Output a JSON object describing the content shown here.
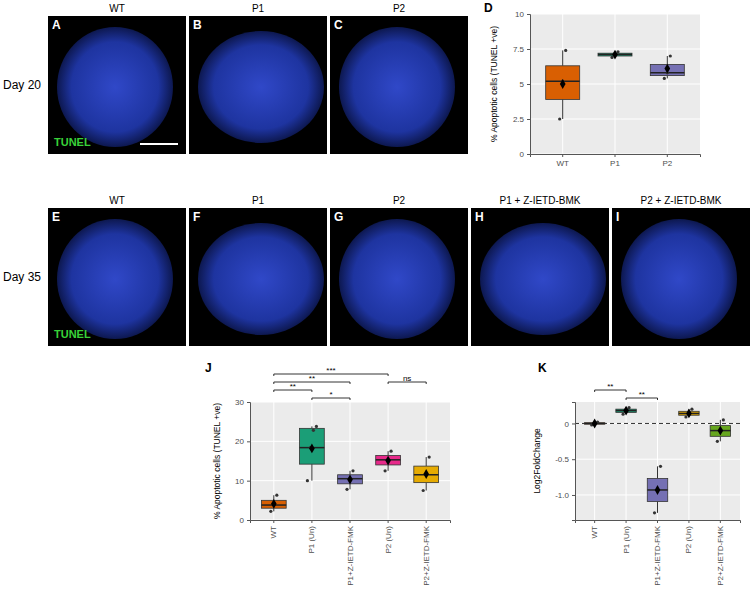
{
  "images": {
    "stain": "TUNEL",
    "rows": [
      {
        "label": "Day 20",
        "panels": [
          {
            "letter": "A",
            "title": "WT"
          },
          {
            "letter": "B",
            "title": "P1"
          },
          {
            "letter": "C",
            "title": "P2"
          }
        ]
      },
      {
        "label": "Day 35",
        "panels": [
          {
            "letter": "E",
            "title": "WT"
          },
          {
            "letter": "F",
            "title": "P1"
          },
          {
            "letter": "G",
            "title": "P2"
          },
          {
            "letter": "H",
            "title": "P1 + Z-IETD-BMK"
          },
          {
            "letter": "I",
            "title": "P2 + Z-IETD-BMK"
          }
        ]
      }
    ]
  },
  "chart_data": [
    {
      "type": "box",
      "panel": "D",
      "ylabel": "% Apoptotic cells (TUNEL +ve)",
      "categories": [
        "WT",
        "P1",
        "P2"
      ],
      "colors": [
        "#d95f02",
        "#1b9e77",
        "#7570b3"
      ],
      "ylim": [
        0,
        10
      ],
      "yticks": [
        0,
        2.5,
        5,
        7.5,
        10
      ],
      "grid": true,
      "boxes": [
        {
          "whisker_low": 2.5,
          "q1": 3.9,
          "median": 5.2,
          "q3": 6.3,
          "whisker_high": 7.4,
          "mean": 5.0,
          "points": [
            2.5,
            5.2,
            7.4
          ]
        },
        {
          "whisker_low": 6.9,
          "q1": 7.0,
          "median": 7.1,
          "q3": 7.2,
          "whisker_high": 7.3,
          "mean": 7.1,
          "points": [
            6.9,
            7.1,
            7.3
          ]
        },
        {
          "whisker_low": 5.4,
          "q1": 5.6,
          "median": 5.8,
          "q3": 6.4,
          "whisker_high": 7.0,
          "mean": 6.1,
          "points": [
            5.4,
            5.8,
            7.0
          ]
        }
      ]
    },
    {
      "type": "box",
      "panel": "J",
      "ylabel": "% Apoptotic cells (TUNEL +ve)",
      "categories": [
        "WT",
        "P1 (Un)",
        "P1+Z-IETD-FMK",
        "P2 (Un)",
        "P2+Z-IETD-FMK"
      ],
      "colors": [
        "#d95f02",
        "#1b9e77",
        "#7570b3",
        "#e7298a",
        "#e6ab02"
      ],
      "ylim": [
        0,
        30
      ],
      "yticks": [
        0,
        10,
        20,
        30
      ],
      "grid": true,
      "boxes": [
        {
          "whisker_low": 2.2,
          "q1": 3.0,
          "median": 3.8,
          "q3": 5.0,
          "whisker_high": 6.3,
          "mean": 4.1,
          "points": [
            2.2,
            3.8,
            6.3
          ]
        },
        {
          "whisker_low": 10.0,
          "q1": 14.2,
          "median": 18.4,
          "q3": 23.3,
          "whisker_high": 23.8,
          "mean": 18.2,
          "points": [
            10.0,
            18.4,
            22.8,
            23.8
          ]
        },
        {
          "whisker_low": 7.8,
          "q1": 9.2,
          "median": 10.5,
          "q3": 11.5,
          "whisker_high": 12.5,
          "mean": 10.3,
          "points": [
            7.8,
            10.5,
            12.5
          ]
        },
        {
          "whisker_low": 12.5,
          "q1": 14.0,
          "median": 15.3,
          "q3": 16.4,
          "whisker_high": 17.5,
          "mean": 15.1,
          "points": [
            12.5,
            15.3,
            17.5
          ]
        },
        {
          "whisker_low": 7.5,
          "q1": 9.5,
          "median": 11.5,
          "q3": 13.7,
          "whisker_high": 16.0,
          "mean": 11.7,
          "points": [
            7.5,
            11.5,
            16.0
          ]
        }
      ],
      "annotations": [
        {
          "from": "WT",
          "to": "P2 (Un)",
          "label": "***"
        },
        {
          "from": "WT",
          "to": "P1+Z-IETD-FMK",
          "label": "**"
        },
        {
          "from": "WT",
          "to": "P1 (Un)",
          "label": "**"
        },
        {
          "from": "P1 (Un)",
          "to": "P1+Z-IETD-FMK",
          "label": "*"
        },
        {
          "from": "P2 (Un)",
          "to": "P2+Z-IETD-FMK",
          "label": "ns"
        }
      ]
    },
    {
      "type": "box",
      "panel": "K",
      "ylabel": "Log2FoldChange",
      "categories": [
        "WT",
        "P1 (Un)",
        "P1+Z-IETD-FMK",
        "P2 (Un)",
        "P2+Z-IETD-FMK"
      ],
      "colors": [
        "#d95f02",
        "#1b9e77",
        "#7570b3",
        "#e6ab02",
        "#66a61e"
      ],
      "ylim": [
        -1.35,
        0.3
      ],
      "yticks": [
        {
          "value": -1,
          "label": "-1.0"
        },
        -0.5,
        0
      ],
      "grid": true,
      "hline": 0,
      "boxes": [
        {
          "whisker_low": -0.02,
          "q1": -0.01,
          "median": 0,
          "q3": 0.01,
          "whisker_high": 0.02,
          "mean": 0,
          "points": [
            -0.02,
            0,
            0.02
          ]
        },
        {
          "whisker_low": 0.13,
          "q1": 0.155,
          "median": 0.18,
          "q3": 0.2,
          "whisker_high": 0.22,
          "mean": 0.18,
          "points": [
            0.13,
            0.18,
            0.22
          ]
        },
        {
          "whisker_low": -1.25,
          "q1": -1.09,
          "median": -0.93,
          "q3": -0.77,
          "whisker_high": -0.6,
          "mean": -0.93,
          "points": [
            -1.25,
            -0.93,
            -0.6
          ]
        },
        {
          "whisker_low": 0.09,
          "q1": 0.115,
          "median": 0.14,
          "q3": 0.17,
          "whisker_high": 0.2,
          "mean": 0.14,
          "points": [
            0.09,
            0.14,
            0.2
          ]
        },
        {
          "whisker_low": -0.25,
          "q1": -0.18,
          "median": -0.1,
          "q3": -0.03,
          "whisker_high": 0.05,
          "mean": -0.1,
          "points": [
            -0.25,
            -0.1,
            0.05
          ]
        }
      ],
      "annotations": [
        {
          "from": "WT",
          "to": "P1 (Un)",
          "label": "**"
        },
        {
          "from": "P1 (Un)",
          "to": "P1+Z-IETD-FMK",
          "label": "**"
        }
      ]
    }
  ]
}
